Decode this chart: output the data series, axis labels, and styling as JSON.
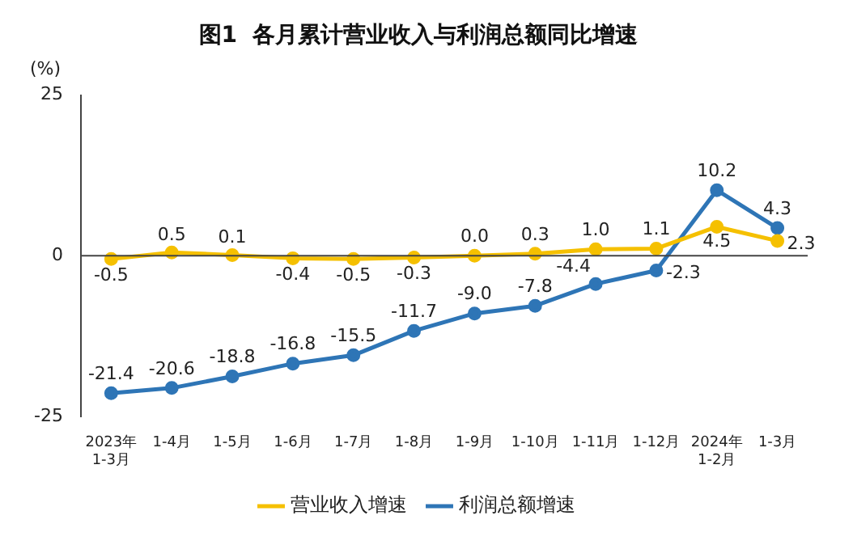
{
  "chart_data": {
    "type": "line",
    "title": "图1  各月累计营业收入与利润总额同比增速",
    "ylabel": "(%)",
    "categories": [
      "2023年\n1-3月",
      "1-4月",
      "1-5月",
      "1-6月",
      "1-7月",
      "1-8月",
      "1-9月",
      "1-10月",
      "1-11月",
      "1-12月",
      "2024年\n1-2月",
      "1-3月"
    ],
    "series": [
      {
        "name": "营业收入增速",
        "color": "#f5c000",
        "values": [
          -0.5,
          0.5,
          0.1,
          -0.4,
          -0.5,
          -0.3,
          0.0,
          0.3,
          1.0,
          1.1,
          4.5,
          2.3
        ],
        "value_labels": [
          "-0.5",
          "0.5",
          "0.1",
          "-0.4",
          "-0.5",
          "-0.3",
          "0.0",
          "0.3",
          "1.0",
          "1.1",
          "4.5",
          "2.3"
        ]
      },
      {
        "name": "利润总额增速",
        "color": "#2e75b6",
        "values": [
          -21.4,
          -20.6,
          -18.8,
          -16.8,
          -15.5,
          -11.7,
          -9.0,
          -7.8,
          -4.4,
          -2.3,
          10.2,
          4.3
        ],
        "value_labels": [
          "-21.4",
          "-20.6",
          "-18.8",
          "-16.8",
          "-15.5",
          "-11.7",
          "-9.0",
          "-7.8",
          "-4.4",
          "-2.3",
          "10.2",
          "4.3"
        ]
      }
    ],
    "ylim": [
      -25,
      25
    ],
    "yticks": [
      -25,
      0,
      25
    ],
    "ref_lines": [
      {
        "axis": "y",
        "value": 0
      }
    ],
    "grid": false,
    "legend": "bottom",
    "marker": "circle",
    "line_style": "solid"
  }
}
